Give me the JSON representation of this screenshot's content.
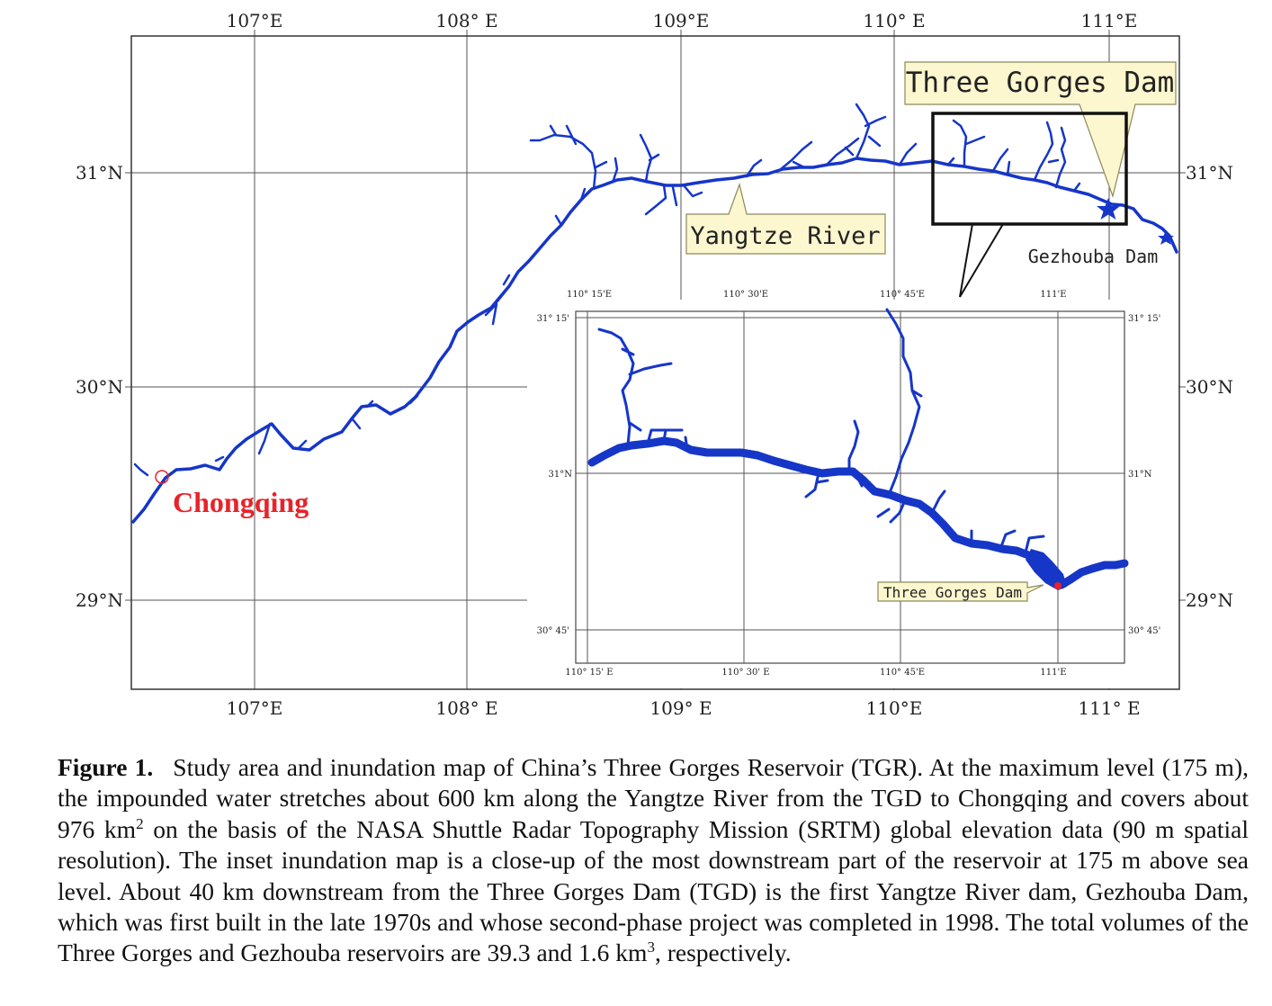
{
  "main_map": {
    "lon_ticks": [
      "107°E",
      "108° E",
      "109°E",
      "110° E",
      "111°E"
    ],
    "lon_ticks_bottom": [
      "107°E",
      "108° E",
      "109° E",
      "110°E",
      "111° E"
    ],
    "lat_ticks_left": [
      "31°N",
      "30°N",
      "29°N"
    ],
    "lat_ticks_right": [
      "31°N",
      "30°N",
      "29°N"
    ],
    "labels": {
      "three_gorges_dam": "Three Gorges Dam",
      "yangtze_river": "Yangtze River",
      "gezhouba_dam": "Gezhouba Dam",
      "chongqing": "Chongqing"
    },
    "colors": {
      "river": "#1636c8",
      "chongqing": "#e8232a",
      "callout_fill": "#fdf7cf",
      "star": "#1636c8"
    }
  },
  "inset_map": {
    "lon_ticks": [
      "110° 15'E",
      "110° 30'E",
      "110° 45'E",
      "111'E"
    ],
    "lon_ticks_bottom": [
      "110° 15' E",
      "110° 30' E",
      "110° 45'E",
      "111'E"
    ],
    "lat_ticks_left": [
      "31° 15'",
      "31°N",
      "30° 45'"
    ],
    "lat_ticks_right": [
      "31° 15'",
      "31°N",
      "30° 45'"
    ],
    "dam_label": "Three Gorges Dam"
  },
  "caption": {
    "label": "Figure 1.",
    "part1": "Study area and inundation map of China’s Three Gorges Reservoir (TGR). At the maximum level (175 m), the impounded water stretches about 600 km along the Yangtze River from the TGD to Chongqing and covers about 976 km",
    "sup1": "2",
    "part2": " on the basis of the NASA Shuttle Radar Topography Mission (SRTM) global elevation data (90 m spatial resolution). The inset inundation map is a close-up of the most downstream part of the reservoir at 175 m above sea level. About 40 km downstream from the Three Gorges Dam (TGD) is the first Yangtze River dam, Gezhouba Dam, which was first built in the late 1970s and whose second-phase project was completed in 1998. The total volumes of the Three Gorges and Gezhouba reservoirs are 39.3 and 1.6 km",
    "sup2": "3",
    "part3": ", respectively."
  }
}
